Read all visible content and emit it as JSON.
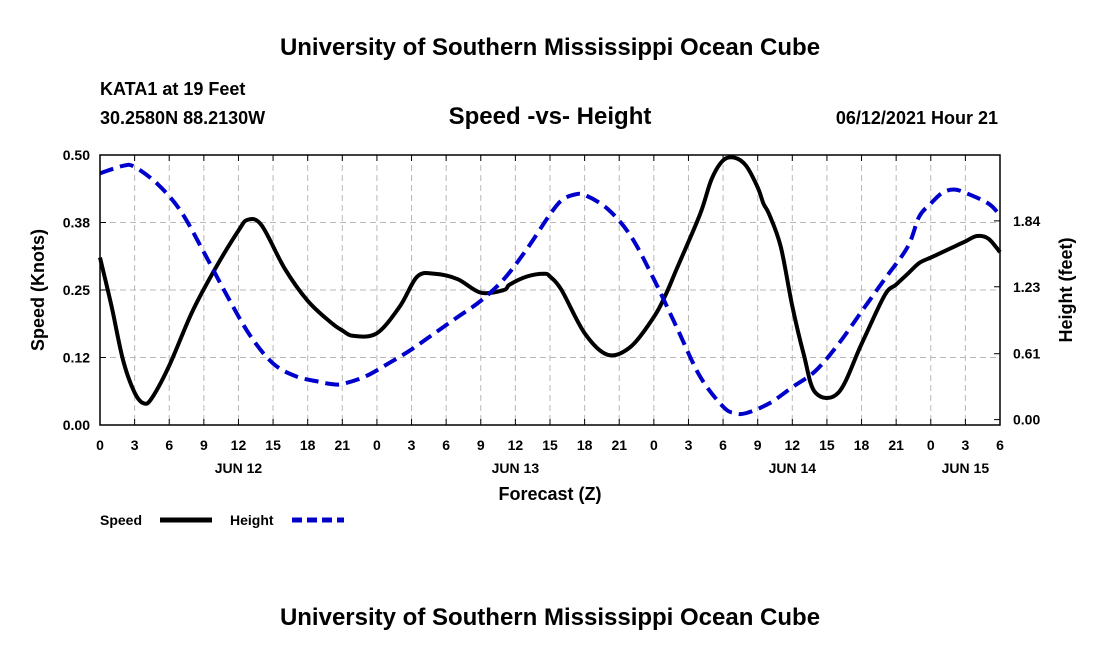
{
  "header": {
    "title_top": "University of Southern Mississippi Ocean Cube",
    "station": "KATA1 at 19 Feet",
    "coords": "30.2580N  88.2130W",
    "datetime": "06/12/2021 Hour 21",
    "title_bottom": "University of Southern Mississippi Ocean Cube"
  },
  "chart_data": {
    "type": "line",
    "title": "Speed -vs- Height",
    "xlabel": "Forecast (Z)",
    "ylabel_left": "Speed (Knots)",
    "ylabel_right": "Height (feet)",
    "x_unit": "hours since JUN 12 00Z",
    "xlim": [
      0,
      78
    ],
    "x_ticks": [
      0,
      3,
      6,
      9,
      12,
      15,
      18,
      21,
      24,
      27,
      30,
      33,
      36,
      39,
      42,
      45,
      48,
      51,
      54,
      57,
      60,
      63,
      66,
      69,
      72,
      75,
      78
    ],
    "x_tick_labels": [
      "0",
      "3",
      "6",
      "9",
      "12",
      "15",
      "18",
      "21",
      "0",
      "3",
      "6",
      "9",
      "12",
      "15",
      "18",
      "21",
      "0",
      "3",
      "6",
      "9",
      "12",
      "15",
      "18",
      "21",
      "0",
      "3",
      "6"
    ],
    "day_labels": [
      {
        "x": 12,
        "text": "JUN 12"
      },
      {
        "x": 36,
        "text": "JUN 13"
      },
      {
        "x": 60,
        "text": "JUN 14"
      },
      {
        "x": 75,
        "text": "JUN 15"
      }
    ],
    "ylim_left": [
      0,
      0.5
    ],
    "y_ticks_left": [
      0.0,
      0.125,
      0.25,
      0.375,
      0.5
    ],
    "y_tick_labels_left": [
      "0.00",
      "0.12",
      "0.25",
      "0.38",
      "0.50"
    ],
    "ylim_right": [
      -0.05,
      2.45
    ],
    "y_ticks_right": [
      0.0,
      0.61,
      1.23,
      1.84
    ],
    "y_tick_labels_right": [
      "0.00",
      "0.61",
      "1.23",
      "1.84"
    ],
    "grid": true,
    "legend_position": "bottom-left",
    "series": [
      {
        "name": "Speed",
        "axis": "left",
        "color": "#000000",
        "dash": "solid",
        "x": [
          0,
          1,
          2,
          3,
          3.8,
          4.5,
          6,
          8,
          10,
          12,
          12.8,
          14,
          16,
          18,
          20,
          21,
          22,
          24,
          26,
          27.5,
          29,
          31,
          33,
          35,
          35.5,
          37,
          38.5,
          39,
          40,
          42,
          44,
          46,
          48,
          49,
          50,
          52,
          53,
          54,
          55,
          56,
          57,
          57.5,
          58,
          59,
          60,
          61,
          62,
          64,
          66,
          68,
          69,
          70,
          71,
          72,
          73,
          74,
          75,
          76,
          77,
          78
        ],
        "y": [
          0.31,
          0.22,
          0.12,
          0.06,
          0.04,
          0.05,
          0.11,
          0.21,
          0.29,
          0.36,
          0.38,
          0.37,
          0.29,
          0.23,
          0.19,
          0.175,
          0.165,
          0.17,
          0.22,
          0.275,
          0.28,
          0.27,
          0.245,
          0.25,
          0.26,
          0.275,
          0.28,
          0.275,
          0.25,
          0.17,
          0.13,
          0.145,
          0.2,
          0.24,
          0.29,
          0.39,
          0.455,
          0.49,
          0.495,
          0.48,
          0.44,
          0.41,
          0.39,
          0.33,
          0.22,
          0.13,
          0.06,
          0.06,
          0.15,
          0.24,
          0.26,
          0.28,
          0.3,
          0.31,
          0.32,
          0.33,
          0.34,
          0.35,
          0.345,
          0.32
        ]
      },
      {
        "name": "Height",
        "axis": "right",
        "color": "#0000cc",
        "dash": "dashed",
        "x": [
          0,
          2,
          3,
          5,
          7,
          9,
          11,
          13,
          15,
          17,
          19,
          20,
          21,
          23,
          25,
          27,
          29,
          31,
          33,
          35,
          37,
          39,
          40,
          41,
          42,
          44,
          46,
          48,
          50,
          52,
          54,
          55,
          56,
          58,
          60,
          62,
          64,
          66,
          68,
          70,
          71,
          72,
          73,
          74,
          75,
          77,
          78
        ],
        "y": [
          2.28,
          2.35,
          2.34,
          2.18,
          1.93,
          1.55,
          1.15,
          0.78,
          0.52,
          0.4,
          0.35,
          0.33,
          0.33,
          0.4,
          0.52,
          0.65,
          0.8,
          0.95,
          1.1,
          1.3,
          1.58,
          1.9,
          2.03,
          2.08,
          2.08,
          1.95,
          1.7,
          1.3,
          0.85,
          0.4,
          0.12,
          0.06,
          0.06,
          0.15,
          0.3,
          0.45,
          0.7,
          1.0,
          1.3,
          1.6,
          1.88,
          2.0,
          2.1,
          2.13,
          2.1,
          2.0,
          1.89
        ]
      }
    ]
  }
}
